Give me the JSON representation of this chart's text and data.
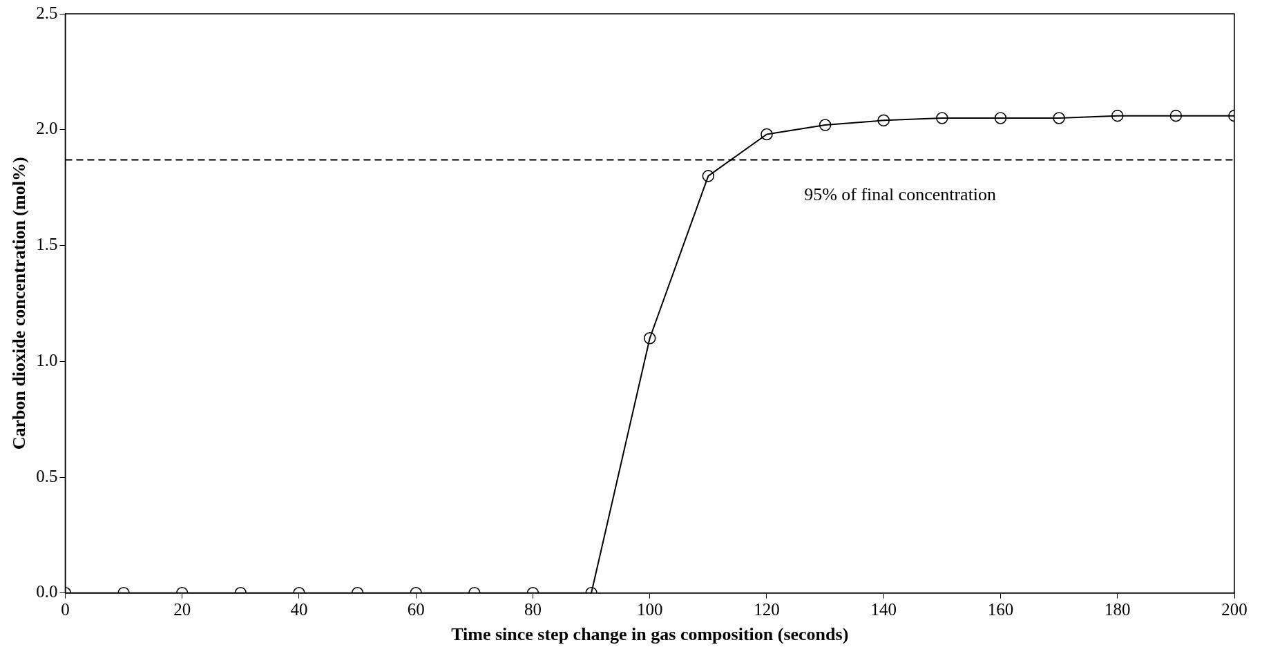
{
  "chart_data": {
    "type": "line",
    "xlabel": "Time since step change in gas composition (seconds)",
    "ylabel": "Carbon dioxide concentration (mol%)",
    "x": [
      0,
      10,
      20,
      30,
      40,
      50,
      60,
      70,
      80,
      90,
      100,
      110,
      120,
      130,
      140,
      150,
      160,
      170,
      180,
      190,
      200
    ],
    "series": [
      {
        "color": "#000000",
        "values": [
          0,
          0,
          0,
          0,
          0,
          0,
          0,
          0,
          0,
          0,
          1.1,
          1.8,
          1.98,
          2.02,
          2.04,
          2.05,
          2.05,
          2.05,
          2.06,
          2.06,
          2.06
        ]
      }
    ],
    "xlim": [
      0,
      200
    ],
    "xticks": [
      0,
      20,
      40,
      60,
      80,
      100,
      120,
      140,
      160,
      180,
      200
    ],
    "ylim": [
      0,
      2.5
    ],
    "yticks": [
      {
        "value": 0,
        "label": "0.0"
      },
      {
        "value": 0.5,
        "label": "0.5"
      },
      {
        "value": 1,
        "label": "1.0"
      },
      {
        "value": 1.5,
        "label": "1.5"
      },
      {
        "value": 2,
        "label": "2.0"
      },
      {
        "value": 2.5,
        "label": "2.5"
      }
    ],
    "ref_lines": [
      {
        "axis": "y",
        "value": 1.87,
        "label": "95% of final concentration",
        "color": "#000000",
        "line_style": "dashed"
      }
    ],
    "grid": false,
    "legend": false,
    "marker": "circle",
    "line_style": "solid"
  }
}
